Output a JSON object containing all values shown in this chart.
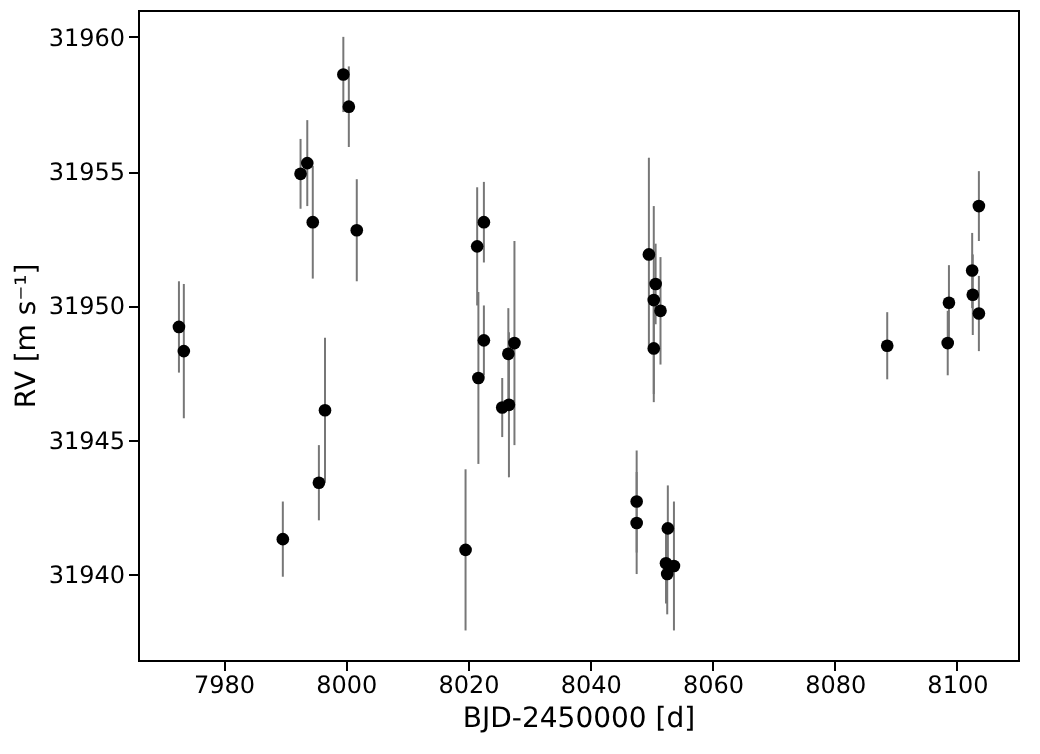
{
  "chart_data": {
    "type": "scatter",
    "xlabel": "BJD-2450000 [d]",
    "ylabel": "RV [m s⁻¹]",
    "x": [
      7972.7,
      7973.5,
      7989.7,
      7992.6,
      7993.7,
      7994.6,
      7995.6,
      7996.6,
      7999.6,
      8000.5,
      8001.8,
      8019.6,
      8021.5,
      8022.6,
      8021.7,
      8022.6,
      8025.6,
      8026.7,
      8026.6,
      8027.6,
      8049.6,
      8050.7,
      8050.4,
      8051.5,
      8050.4,
      8047.6,
      8047.6,
      8052.7,
      8052.4,
      8052.6,
      8053.7,
      8088.6,
      8098.7,
      8098.5,
      8102.5,
      8102.6,
      8103.6,
      8103.6
    ],
    "series": [
      {
        "color": "#000000",
        "values": [
          31949.2,
          31948.3,
          31941.3,
          31954.9,
          31955.3,
          31953.1,
          31943.4,
          31946.1,
          31958.6,
          31957.4,
          31952.8,
          31940.9,
          31952.2,
          31953.1,
          31947.3,
          31948.7,
          31946.2,
          31946.3,
          31948.2,
          31948.6,
          31951.9,
          31950.8,
          31950.2,
          31949.8,
          31948.4,
          31942.7,
          31941.9,
          31941.7,
          31940.4,
          31940.0,
          31940.3,
          31948.5,
          31950.1,
          31948.6,
          31951.3,
          31950.4,
          31949.7,
          31953.7
        ],
        "errors": [
          1.7,
          2.5,
          1.4,
          1.3,
          1.6,
          2.1,
          1.4,
          2.7,
          1.4,
          1.5,
          1.9,
          3.0,
          2.2,
          1.5,
          3.2,
          1.3,
          1.1,
          2.7,
          1.7,
          3.8,
          3.6,
          1.5,
          3.5,
          2.0,
          2.0,
          1.9,
          1.9,
          1.6,
          1.5,
          1.5,
          2.4,
          1.25,
          1.4,
          1.2,
          1.4,
          1.5,
          1.4,
          1.3
        ]
      }
    ],
    "xlim": [
      7966,
      8110
    ],
    "ylim": [
      31936.8,
      31961
    ],
    "xticks": [
      7980,
      8000,
      8020,
      8040,
      8060,
      8080,
      8100
    ],
    "yticks": [
      31940,
      31945,
      31950,
      31955,
      31960
    ],
    "marker": "circle",
    "grid": false
  }
}
